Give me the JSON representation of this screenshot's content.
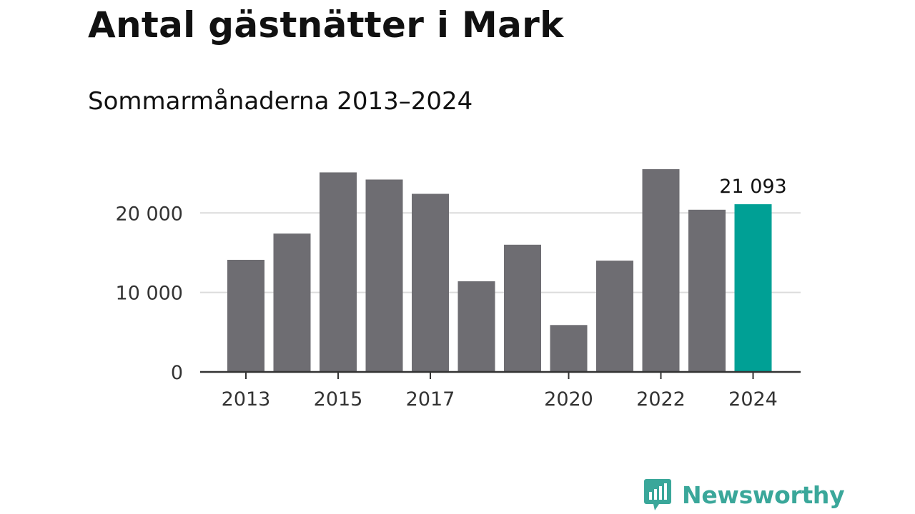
{
  "title": "Antal gästnätter i Mark",
  "subtitle": "Sommarmånaderna 2013–2024",
  "brand": {
    "name": "Newsworthy",
    "icon": "newsworthy-logo-icon",
    "color": "#3aa79a"
  },
  "chart_data": {
    "type": "bar",
    "title": "Antal gästnätter i Mark",
    "subtitle": "Sommarmånaderna 2013–2024",
    "xlabel": "",
    "ylabel": "",
    "categories": [
      "2013",
      "2014",
      "2015",
      "2016",
      "2017",
      "2018",
      "2019",
      "2020",
      "2021",
      "2022",
      "2023",
      "2024"
    ],
    "x_tick_labels": [
      "2013",
      "2015",
      "2017",
      "2020",
      "2022",
      "2024"
    ],
    "values": [
      14100,
      17400,
      25100,
      24200,
      22400,
      11400,
      16000,
      5900,
      14000,
      25500,
      20400,
      21093
    ],
    "highlight": {
      "category": "2024",
      "label": "21 093",
      "color": "#00a095"
    },
    "bar_color": "#6e6d72",
    "y_ticks": [
      0,
      10000,
      20000
    ],
    "y_tick_labels": [
      "0",
      "10 000",
      "20 000"
    ],
    "ylim": [
      0,
      25500
    ],
    "grid": true,
    "legend": "none"
  }
}
